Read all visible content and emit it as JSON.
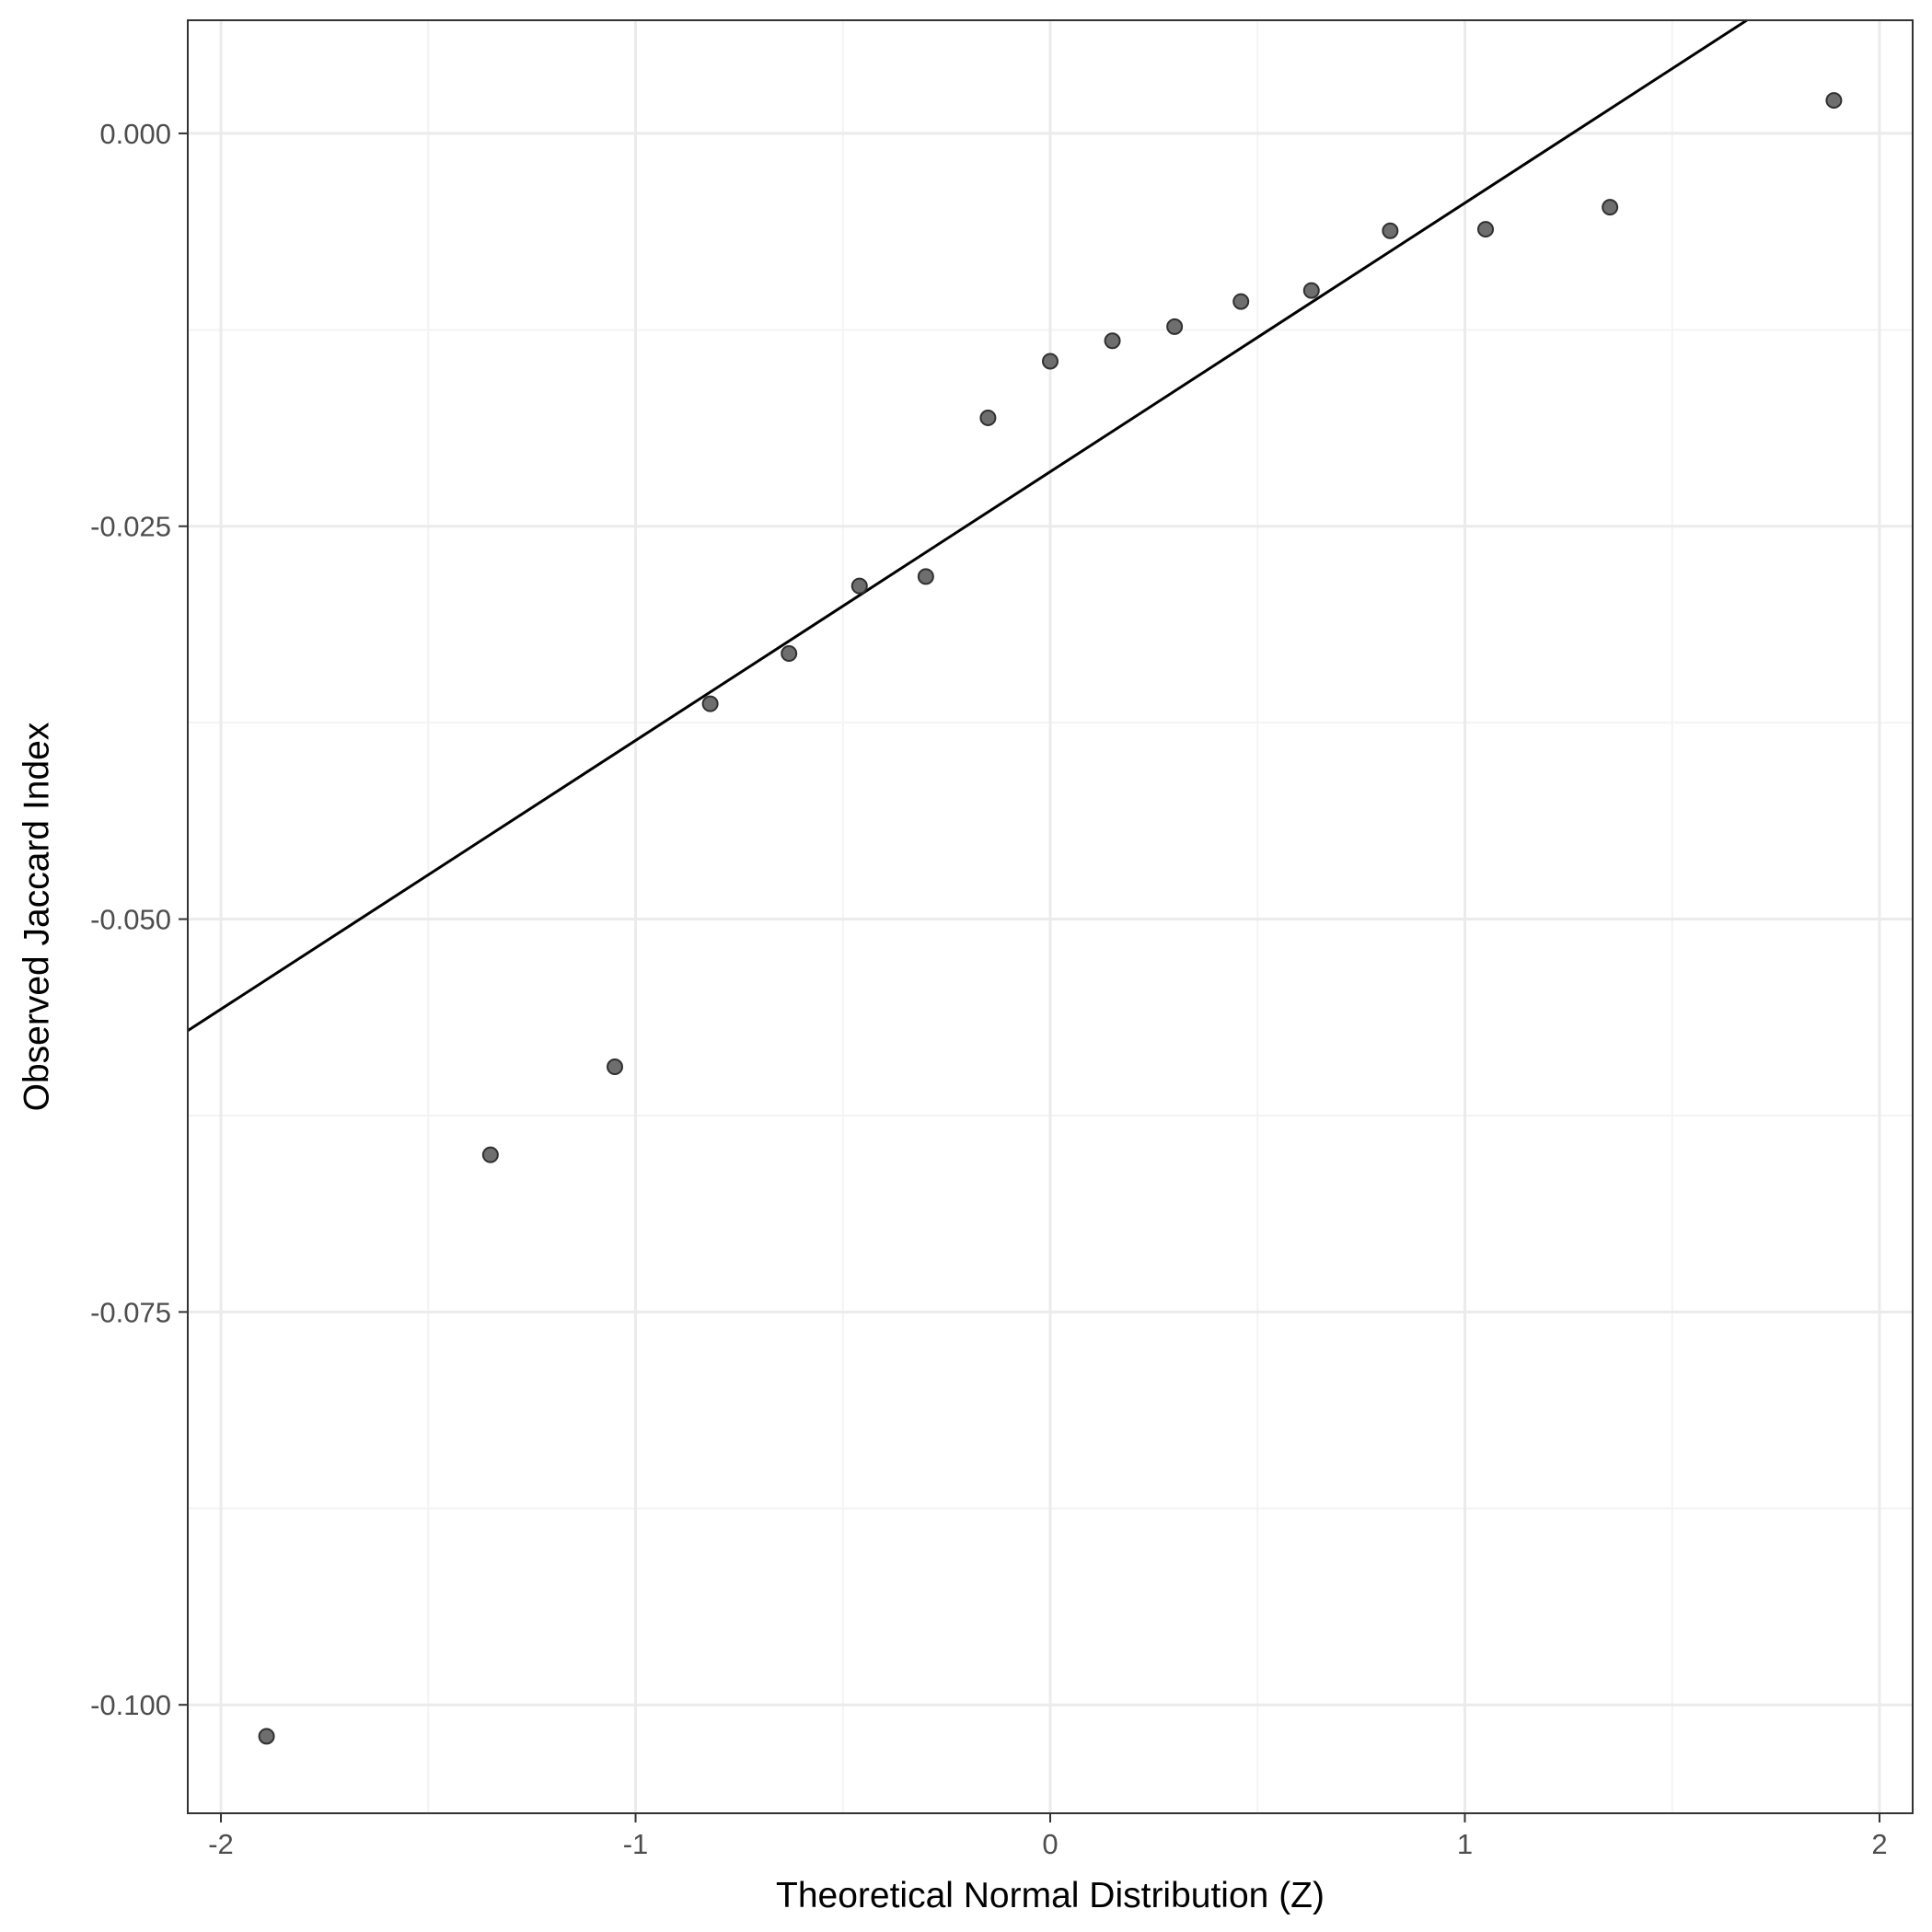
{
  "chart_data": {
    "type": "scatter",
    "title": "",
    "xlabel": "Theoretical Normal Distribution (Z)",
    "ylabel": "Observed Jaccard Index",
    "xlim": [
      -2.08,
      2.08
    ],
    "ylim": [
      -0.1069,
      0.0072
    ],
    "x_ticks": [
      -2,
      -1,
      0,
      1,
      2
    ],
    "x_tick_labels": [
      "-2",
      "-1",
      "0",
      "1",
      "2"
    ],
    "y_ticks": [
      0.0,
      -0.025,
      -0.05,
      -0.075,
      -0.1
    ],
    "y_tick_labels": [
      "0.000",
      "-0.025",
      "-0.050",
      "-0.075",
      "-0.100"
    ],
    "grid": true,
    "legend": "none",
    "colors": {
      "points_fill": "#6e6e6e",
      "points_stroke": "#303030",
      "line": "#000000",
      "grid_major": "#ebebeb",
      "grid_minor": "#f3f3f3",
      "panel_border": "#333333"
    },
    "points": [
      {
        "x": -1.89,
        "y": -0.102
      },
      {
        "x": -1.35,
        "y": -0.065
      },
      {
        "x": -1.05,
        "y": -0.0594
      },
      {
        "x": -0.82,
        "y": -0.0363
      },
      {
        "x": -0.63,
        "y": -0.0331
      },
      {
        "x": -0.46,
        "y": -0.0288
      },
      {
        "x": -0.3,
        "y": -0.0282
      },
      {
        "x": -0.15,
        "y": -0.0181
      },
      {
        "x": 0.0,
        "y": -0.0145
      },
      {
        "x": 0.15,
        "y": -0.0132
      },
      {
        "x": 0.3,
        "y": -0.0123
      },
      {
        "x": 0.46,
        "y": -0.0107
      },
      {
        "x": 0.63,
        "y": -0.01
      },
      {
        "x": 0.82,
        "y": -0.0062
      },
      {
        "x": 1.05,
        "y": -0.0061
      },
      {
        "x": 1.35,
        "y": -0.0047
      },
      {
        "x": 1.89,
        "y": 0.0021
      }
    ],
    "reference_line": {
      "x1": -2.08,
      "y1": -0.0571,
      "x2": 1.68,
      "y2": 0.0072
    }
  }
}
